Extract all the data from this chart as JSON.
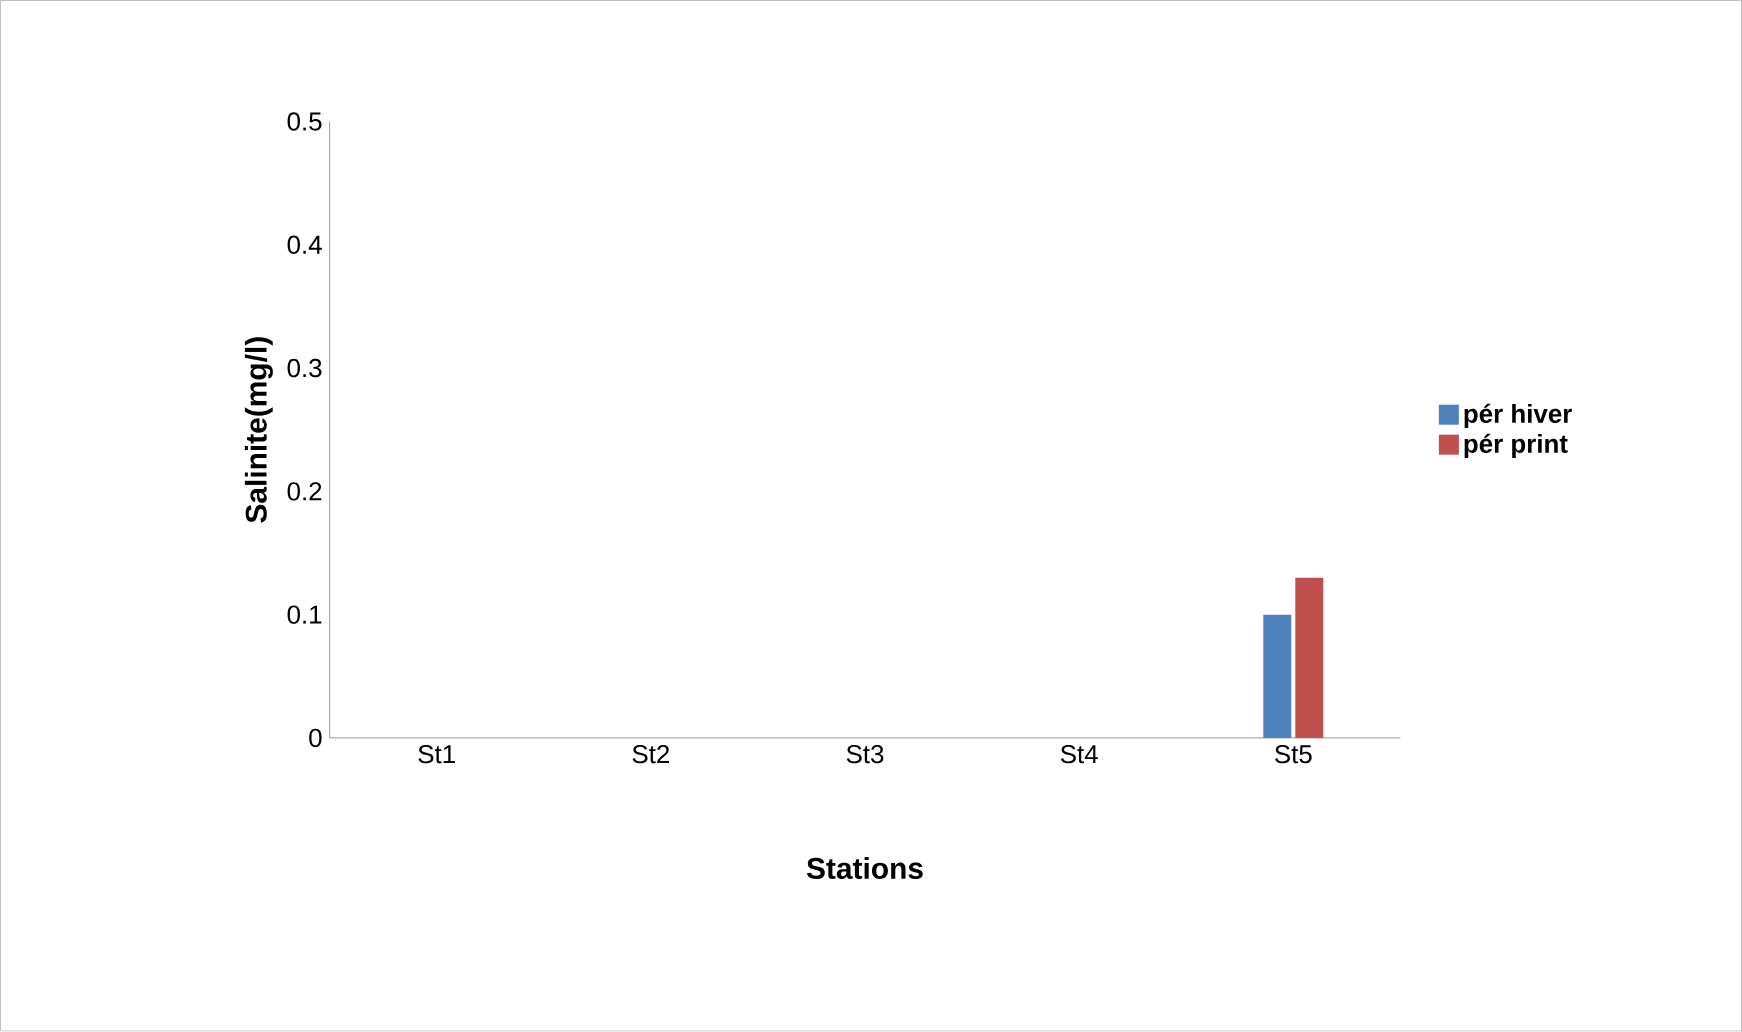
{
  "chart_data": {
    "type": "bar",
    "xlabel": "Stations",
    "ylabel": "Salinite(mg/l)",
    "categories": [
      "St1",
      "St2",
      "St3",
      "St4",
      "St5"
    ],
    "series": [
      {
        "name": "pér hiver",
        "color": "#4f81bd",
        "values": [
          0,
          0,
          0,
          0,
          0.1
        ]
      },
      {
        "name": "pér print",
        "color": "#c0504d",
        "values": [
          0,
          0,
          0,
          0,
          0.13
        ]
      }
    ],
    "ylim": [
      0,
      0.5
    ],
    "yticks": [
      0,
      0.1,
      0.2,
      0.3,
      0.4,
      0.5
    ],
    "legend": "right"
  }
}
